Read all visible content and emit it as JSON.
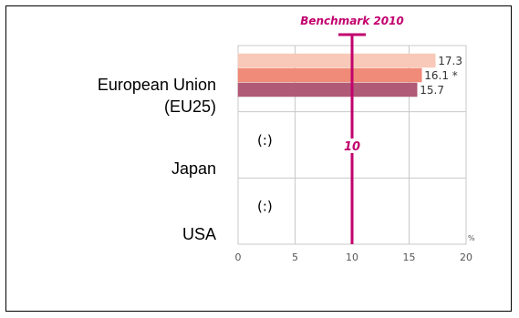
{
  "chart_data": {
    "type": "bar",
    "orientation": "horizontal",
    "categories": [
      "European Union (EU25)",
      "Japan",
      "USA"
    ],
    "category_lines": [
      [
        "European Union",
        "(EU25)"
      ],
      [
        "Japan"
      ],
      [
        "USA"
      ]
    ],
    "series": [
      {
        "color": "#f8c9b9",
        "values": [
          17.3,
          null,
          null
        ],
        "labels": [
          "17.3",
          "",
          ""
        ]
      },
      {
        "color": "#ef8b78",
        "values": [
          16.1,
          null,
          null
        ],
        "labels": [
          "16.1 *",
          "",
          ""
        ]
      },
      {
        "color": "#b05a78",
        "values": [
          15.7,
          null,
          null
        ],
        "labels": [
          "15.7",
          "",
          ""
        ]
      }
    ],
    "missing_marker": "(:)",
    "x_ticks": [
      "0",
      "5",
      "10",
      "15",
      "20"
    ],
    "x_unit": "%",
    "xlim": [
      0,
      20
    ],
    "benchmark": {
      "value": 10,
      "title": "Benchmark 2010",
      "value_label": "10",
      "color": "#c2006e"
    },
    "grid": true
  }
}
